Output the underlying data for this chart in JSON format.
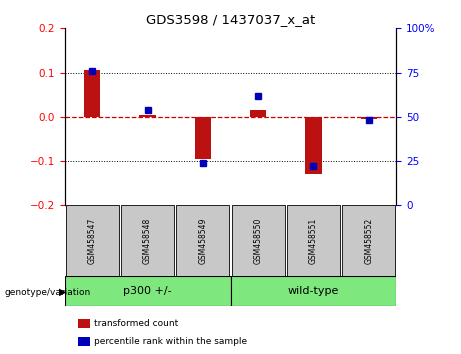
{
  "title": "GDS3598 / 1437037_x_at",
  "samples": [
    "GSM458547",
    "GSM458548",
    "GSM458549",
    "GSM458550",
    "GSM458551",
    "GSM458552"
  ],
  "transformed_count": [
    0.105,
    0.005,
    -0.095,
    0.015,
    -0.13,
    -0.005
  ],
  "percentile_rank": [
    76,
    54,
    24,
    62,
    22,
    48
  ],
  "groups": [
    {
      "label": "p300 +/-",
      "indices": [
        0,
        1,
        2
      ],
      "color": "#7ee87e"
    },
    {
      "label": "wild-type",
      "indices": [
        3,
        4,
        5
      ],
      "color": "#7ee87e"
    }
  ],
  "ylim_left": [
    -0.2,
    0.2
  ],
  "ylim_right": [
    0,
    100
  ],
  "yticks_left": [
    -0.2,
    -0.1,
    0.0,
    0.1,
    0.2
  ],
  "yticks_right": [
    0,
    25,
    50,
    75,
    100
  ],
  "bar_color": "#bb1111",
  "dot_color": "#0000bb",
  "zero_line_color": "#cc0000",
  "grid_color": "black",
  "left_tick_color": "red",
  "right_tick_color": "blue",
  "sample_box_color": "#c8c8c8",
  "legend_items": [
    "transformed count",
    "percentile rank within the sample"
  ]
}
